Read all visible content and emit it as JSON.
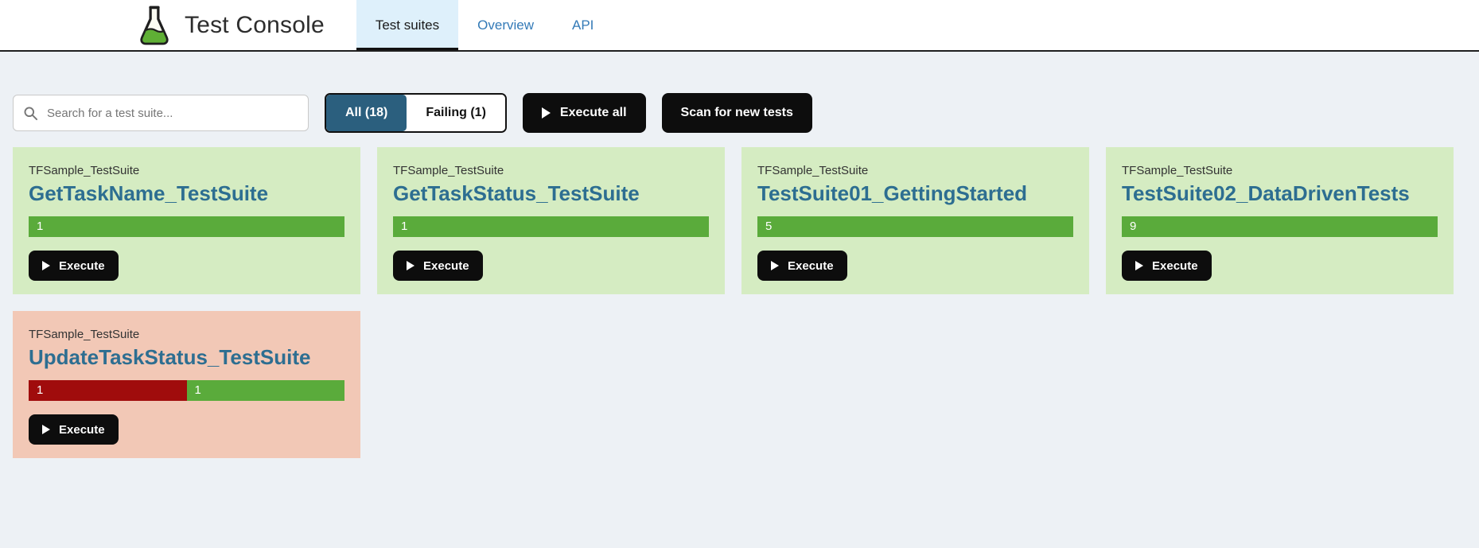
{
  "colors": {
    "page_bg": "#edf1f5",
    "accent_tab_bg": "#def0fb",
    "link_blue": "#337ab7",
    "filter_active_bg": "#2b5f7e",
    "button_black": "#0d0d0d",
    "title_blue": "#2d6e91",
    "pass_bar": "#5aab3b",
    "fail_bar": "#a00c0c",
    "card_pass_bg": "#d5ecc2",
    "card_fail_bg": "#f2c8b6"
  },
  "header": {
    "title": "Test Console",
    "logo_icon": "flask-icon",
    "tabs": [
      {
        "label": "Test suites",
        "active": true
      },
      {
        "label": "Overview",
        "active": false
      },
      {
        "label": "API",
        "active": false
      }
    ]
  },
  "toolbar": {
    "search_placeholder": "Search for a test suite...",
    "filters": [
      {
        "label": "All (18)",
        "active": true
      },
      {
        "label": "Failing (1)",
        "active": false
      }
    ],
    "execute_all_label": "Execute all",
    "scan_label": "Scan for new tests"
  },
  "cards": [
    {
      "project": "TFSample_TestSuite",
      "name": "GetTaskName_TestSuite",
      "status": "pass",
      "execute_label": "Execute",
      "bars": [
        {
          "kind": "pass",
          "count": "1",
          "percent": 100
        }
      ]
    },
    {
      "project": "TFSample_TestSuite",
      "name": "GetTaskStatus_TestSuite",
      "status": "pass",
      "execute_label": "Execute",
      "bars": [
        {
          "kind": "pass",
          "count": "1",
          "percent": 100
        }
      ]
    },
    {
      "project": "TFSample_TestSuite",
      "name": "TestSuite01_GettingStarted",
      "status": "pass",
      "execute_label": "Execute",
      "bars": [
        {
          "kind": "pass",
          "count": "5",
          "percent": 100
        }
      ]
    },
    {
      "project": "TFSample_TestSuite",
      "name": "TestSuite02_DataDrivenTests",
      "status": "pass",
      "execute_label": "Execute",
      "bars": [
        {
          "kind": "pass",
          "count": "9",
          "percent": 100
        }
      ]
    },
    {
      "project": "TFSample_TestSuite",
      "name": "UpdateTaskStatus_TestSuite",
      "status": "fail",
      "execute_label": "Execute",
      "bars": [
        {
          "kind": "fail",
          "count": "1",
          "percent": 50
        },
        {
          "kind": "pass",
          "count": "1",
          "percent": 50
        }
      ]
    }
  ]
}
